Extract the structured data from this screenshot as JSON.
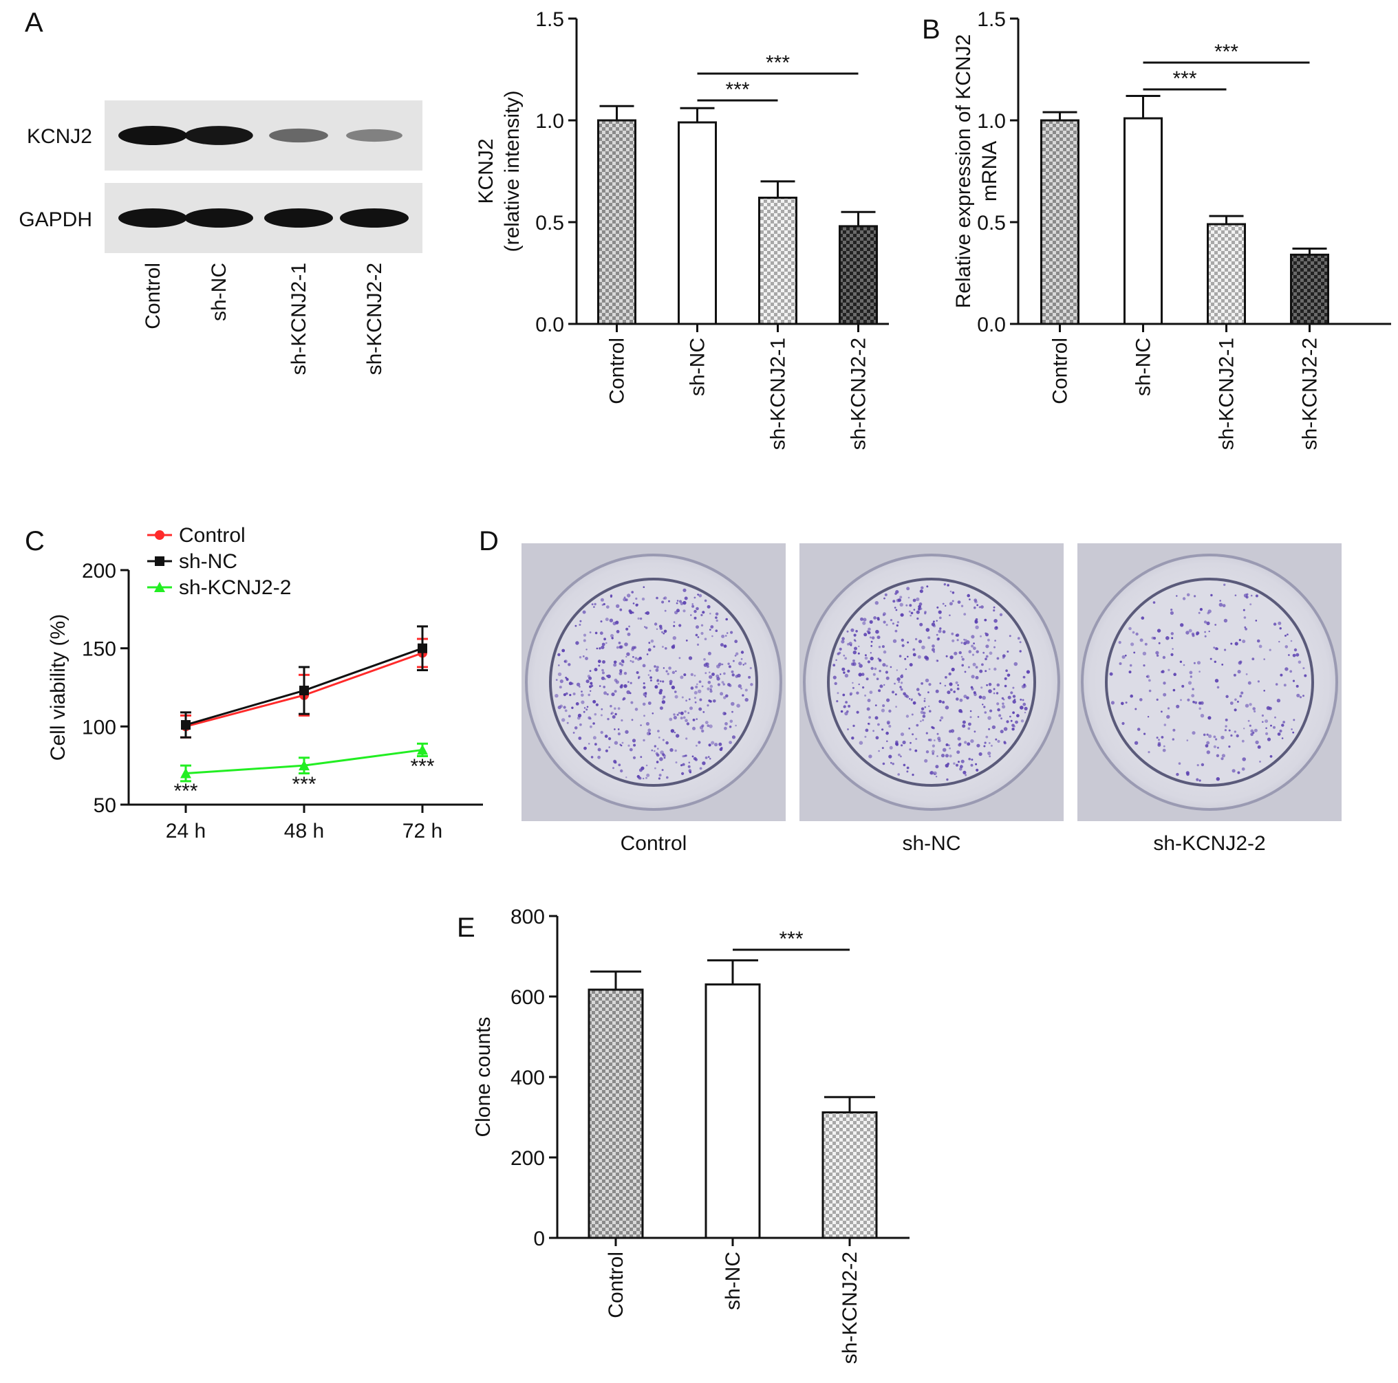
{
  "panels": {
    "A": "A",
    "B": "B",
    "C": "C",
    "D": "D",
    "E": "E"
  },
  "blot": {
    "rows": [
      "KCNJ2",
      "GAPDH"
    ],
    "lanes": [
      "Control",
      "sh-NC",
      "sh-KCNJ2-1",
      "sh-KCNJ2-2"
    ],
    "band_intensity": {
      "KCNJ2": [
        1.0,
        0.98,
        0.45,
        0.3
      ],
      "GAPDH": [
        1.0,
        1.0,
        1.0,
        1.0
      ]
    }
  },
  "plates": {
    "labels": [
      "Control",
      "sh-NC",
      "sh-KCNJ2-2"
    ],
    "colony_density": [
      1.0,
      1.0,
      0.5
    ]
  },
  "chart_data": [
    {
      "panel": "A",
      "type": "bar",
      "categories": [
        "Control",
        "sh-NC",
        "sh-KCNJ2-1",
        "sh-KCNJ2-2"
      ],
      "values": [
        1.0,
        0.99,
        0.62,
        0.48
      ],
      "errors": [
        0.07,
        0.07,
        0.08,
        0.07
      ],
      "patterns": [
        "check",
        "white",
        "check-light",
        "check-dark"
      ],
      "ylabel": [
        "KCNJ2",
        "(relative intensity)"
      ],
      "ylim": [
        0,
        1.5
      ],
      "yticks": [
        "0.0",
        "0.5",
        "1.0",
        "1.5"
      ],
      "significance": [
        {
          "from": 1,
          "to": 2,
          "label": "***"
        },
        {
          "from": 1,
          "to": 3,
          "label": "***"
        }
      ]
    },
    {
      "panel": "B",
      "type": "bar",
      "categories": [
        "Control",
        "sh-NC",
        "sh-KCNJ2-1",
        "sh-KCNJ2-2"
      ],
      "values": [
        1.0,
        1.01,
        0.49,
        0.34
      ],
      "errors": [
        0.04,
        0.11,
        0.04,
        0.03
      ],
      "patterns": [
        "check",
        "white",
        "check-light",
        "check-dark"
      ],
      "ylabel": [
        "Relative expression of KCNJ2",
        "mRNA"
      ],
      "ylim": [
        0,
        1.5
      ],
      "yticks": [
        "0.0",
        "0.5",
        "1.0",
        "1.5"
      ],
      "significance": [
        {
          "from": 1,
          "to": 2,
          "label": "***"
        },
        {
          "from": 1,
          "to": 3,
          "label": "***"
        }
      ]
    },
    {
      "panel": "C",
      "type": "line",
      "categories": [
        "24 h",
        "48 h",
        "72 h"
      ],
      "ylabel": "Cell viability (%)",
      "ylim": [
        50,
        200
      ],
      "yticks": [
        "50",
        "100",
        "150",
        "200"
      ],
      "legend_position": "top-left",
      "series": [
        {
          "name": "Control",
          "values": [
            100,
            120,
            147
          ],
          "errors": [
            7,
            13,
            9
          ],
          "color": "#ff2a2a",
          "marker": "circle"
        },
        {
          "name": "sh-NC",
          "values": [
            101,
            123,
            150
          ],
          "errors": [
            8,
            15,
            14
          ],
          "color": "#111111",
          "marker": "square"
        },
        {
          "name": "sh-KCNJ2-2",
          "values": [
            70,
            75,
            85
          ],
          "errors": [
            5,
            5,
            4
          ],
          "color": "#22ee22",
          "marker": "triangle"
        }
      ],
      "annotations": [
        "***",
        "***",
        "***"
      ]
    },
    {
      "panel": "E",
      "type": "bar",
      "categories": [
        "Control",
        "sh-NC",
        "sh-KCNJ2-2"
      ],
      "values": [
        617,
        630,
        312
      ],
      "errors": [
        45,
        60,
        38
      ],
      "patterns": [
        "check",
        "white",
        "check-light"
      ],
      "ylabel": "Clone counts",
      "ylim": [
        0,
        800
      ],
      "yticks": [
        "0",
        "200",
        "400",
        "600",
        "800"
      ],
      "significance": [
        {
          "from": 1,
          "to": 2,
          "label": "***"
        }
      ]
    }
  ]
}
